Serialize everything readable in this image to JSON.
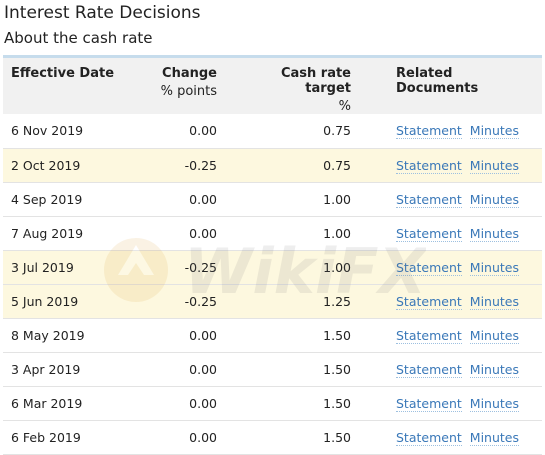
{
  "page": {
    "title": "Interest Rate Decisions",
    "subtitle": "About the cash rate"
  },
  "table": {
    "headers": {
      "date": "Effective Date",
      "change": "Change",
      "change_unit": "% points",
      "target": "Cash rate target",
      "target_unit": "%",
      "docs": "Related Documents"
    },
    "rows": [
      {
        "date": "6 Nov 2019",
        "change": "0.00",
        "target": "0.75",
        "statement": "Statement",
        "minutes": "Minutes",
        "highlight": false
      },
      {
        "date": "2 Oct 2019",
        "change": "-0.25",
        "target": "0.75",
        "statement": "Statement",
        "minutes": "Minutes",
        "highlight": true
      },
      {
        "date": "4 Sep 2019",
        "change": "0.00",
        "target": "1.00",
        "statement": "Statement",
        "minutes": "Minutes",
        "highlight": false
      },
      {
        "date": "7 Aug 2019",
        "change": "0.00",
        "target": "1.00",
        "statement": "Statement",
        "minutes": "Minutes",
        "highlight": false
      },
      {
        "date": "3 Jul 2019",
        "change": "-0.25",
        "target": "1.00",
        "statement": "Statement",
        "minutes": "Minutes",
        "highlight": true
      },
      {
        "date": "5 Jun 2019",
        "change": "-0.25",
        "target": "1.25",
        "statement": "Statement",
        "minutes": "Minutes",
        "highlight": true
      },
      {
        "date": "8 May 2019",
        "change": "0.00",
        "target": "1.50",
        "statement": "Statement",
        "minutes": "Minutes",
        "highlight": false
      },
      {
        "date": "3 Apr 2019",
        "change": "0.00",
        "target": "1.50",
        "statement": "Statement",
        "minutes": "Minutes",
        "highlight": false
      },
      {
        "date": "6 Mar 2019",
        "change": "0.00",
        "target": "1.50",
        "statement": "Statement",
        "minutes": "Minutes",
        "highlight": false
      },
      {
        "date": "6 Feb 2019",
        "change": "0.00",
        "target": "1.50",
        "statement": "Statement",
        "minutes": "Minutes",
        "highlight": false
      }
    ]
  },
  "colors": {
    "highlight_row": "#fdf8df",
    "header_bg": "#f1f1f1",
    "link": "#3a78b8",
    "header_border": "#c6dcec"
  },
  "watermark": {
    "text": "WikiFX",
    "icon": "wikifx-logo-icon"
  }
}
